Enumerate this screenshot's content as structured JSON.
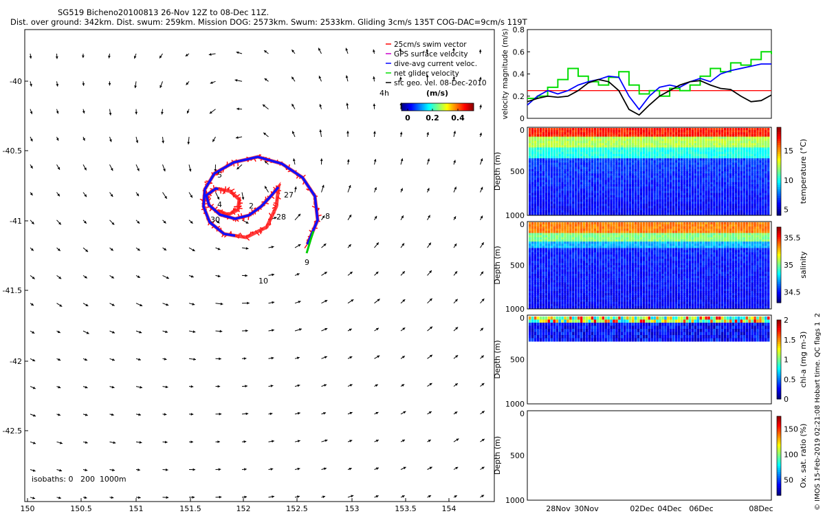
{
  "header": {
    "title": "SG519 Bicheno20100813 26-Nov 12Z to 08-Dec 11Z.",
    "stats": "Dist. over ground: 342km. Dist. swum: 259km. Mission DOG: 2573km. Swum: 2533km. Gliding 3cm/s 135T COG-DAC=9cm/s 119T"
  },
  "map": {
    "legend": [
      {
        "label": "25cm/s swim vector",
        "color": "#ff0000"
      },
      {
        "label": "GPS surface velocity",
        "color": "#cc00cc"
      },
      {
        "label": "dive-avg current veloc.",
        "color": "#0000ff"
      },
      {
        "label": "net glider velocity",
        "color": "#00dd00"
      },
      {
        "label": "sfc geo. vel. 08-Dec-2010",
        "color": "#000000"
      }
    ],
    "interval_label": "4h",
    "colorbar": {
      "title": "(m/s)",
      "ticks": [
        "0",
        "0.2",
        "0.4"
      ]
    },
    "isobaths": "isobaths: 0   200  1000m",
    "xticks": [
      "150",
      "150.5",
      "151",
      "151.5",
      "152",
      "152.5",
      "153",
      "153.5",
      "154"
    ],
    "yticks": [
      "-40",
      "-40.5",
      "-41",
      "-41.5",
      "-42",
      "-42.5"
    ],
    "day_labels": [
      "5",
      "4",
      "2",
      "30",
      "27",
      "28",
      "8",
      "9",
      "10"
    ]
  },
  "chart_data": [
    {
      "type": "line",
      "ylabel": "velocity magnitude (m/s)",
      "yticks": [
        "0",
        "0.2",
        "0.4",
        "0.6",
        "0.8"
      ],
      "ylim": [
        0,
        0.8
      ],
      "xlim": [
        0,
        12
      ],
      "threshold": 0.25,
      "series": [
        {
          "color": "#00dd00",
          "x": [
            0,
            0.5,
            1,
            1.5,
            2,
            2.5,
            3,
            3.5,
            4,
            4.5,
            5,
            5.5,
            6,
            6.5,
            7,
            7.5,
            8,
            8.5,
            9,
            9.5,
            10,
            10.5,
            11,
            11.5,
            12
          ],
          "values": [
            0.18,
            0.2,
            0.28,
            0.35,
            0.45,
            0.38,
            0.33,
            0.3,
            0.37,
            0.42,
            0.3,
            0.22,
            0.25,
            0.2,
            0.27,
            0.25,
            0.3,
            0.38,
            0.45,
            0.42,
            0.5,
            0.48,
            0.53,
            0.6,
            0.58
          ]
        },
        {
          "color": "#0000ff",
          "x": [
            0,
            0.5,
            1,
            1.5,
            2,
            2.5,
            3,
            3.5,
            4,
            4.5,
            5,
            5.5,
            6,
            6.5,
            7,
            7.5,
            8,
            8.5,
            9,
            9.5,
            10,
            10.5,
            11,
            11.5,
            12
          ],
          "values": [
            0.12,
            0.2,
            0.25,
            0.22,
            0.25,
            0.3,
            0.33,
            0.35,
            0.38,
            0.37,
            0.2,
            0.08,
            0.2,
            0.28,
            0.3,
            0.28,
            0.33,
            0.36,
            0.33,
            0.4,
            0.43,
            0.45,
            0.47,
            0.49,
            0.49
          ]
        },
        {
          "color": "#000000",
          "x": [
            0,
            0.5,
            1,
            1.5,
            2,
            2.5,
            3,
            3.5,
            4,
            4.5,
            5,
            5.5,
            6,
            6.5,
            7,
            7.5,
            8,
            8.5,
            9,
            9.5,
            10,
            10.5,
            11,
            11.5,
            12
          ],
          "values": [
            0.15,
            0.18,
            0.2,
            0.19,
            0.2,
            0.25,
            0.32,
            0.35,
            0.33,
            0.25,
            0.08,
            0.03,
            0.12,
            0.2,
            0.25,
            0.3,
            0.33,
            0.34,
            0.3,
            0.27,
            0.26,
            0.2,
            0.15,
            0.16,
            0.21
          ]
        }
      ]
    },
    {
      "type": "heatmap",
      "ylabel": "Depth (m)",
      "yticks": [
        "0",
        "500",
        "1000"
      ],
      "colorbar_label": "temperature (°C)",
      "colorbar_ticks": [
        "5",
        "10",
        "15"
      ],
      "crange": [
        4,
        19
      ]
    },
    {
      "type": "heatmap",
      "ylabel": "Depth (m)",
      "yticks": [
        "0",
        "500",
        "1000"
      ],
      "colorbar_label": "salinity",
      "colorbar_ticks": [
        "34.5",
        "35",
        "35.5"
      ],
      "crange": [
        34.3,
        35.7
      ]
    },
    {
      "type": "heatmap",
      "ylabel": "Depth (m)",
      "yticks": [
        "0",
        "500",
        "1000"
      ],
      "colorbar_label": "chl-a (mg m-3)",
      "colorbar_ticks": [
        "0",
        "0.5",
        "1",
        "1.5",
        "2"
      ],
      "crange": [
        0,
        2
      ]
    },
    {
      "type": "heatmap",
      "ylabel": "Depth (m)",
      "yticks": [
        "0",
        "500",
        "1000"
      ],
      "colorbar_label": "Ox. sat. ratio (%)",
      "colorbar_ticks": [
        "50",
        "100",
        "150"
      ],
      "crange": [
        20,
        175
      ],
      "xticks": [
        "28Nov",
        "30Nov",
        "02Dec",
        "04Dec",
        "06Dec",
        "08Dec"
      ]
    }
  ],
  "credit": "© IMOS 15-Feb-2019 02:21:08 Hobart time. QC flags 1  2"
}
